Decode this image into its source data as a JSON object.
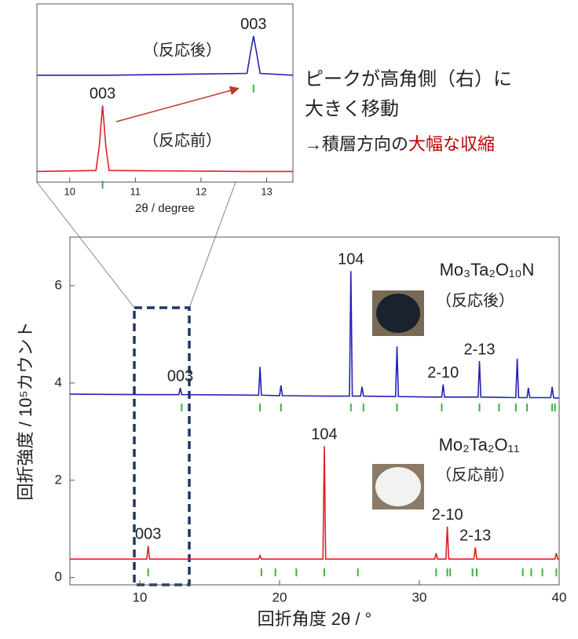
{
  "chart_data": [
    {
      "type": "line",
      "x_label": "回折角度 2θ / °",
      "y_label": "回折強度 / 10⁵カウント",
      "xlim": [
        5,
        40
      ],
      "xticks": [
        10,
        20,
        30,
        40
      ],
      "ylim": [
        -0.15,
        7
      ],
      "yticks": [
        0,
        2,
        4,
        6
      ],
      "reflection_color": "#3cb043",
      "x": [
        5,
        10.5,
        10.6,
        10.7,
        12.8,
        12.9,
        13.0,
        18.5,
        18.6,
        18.7,
        20.0,
        20.1,
        20.2,
        23.1,
        23.2,
        23.3,
        25.0,
        25.1,
        25.2,
        25.8,
        25.9,
        26.0,
        28.3,
        28.4,
        28.5,
        31.1,
        31.2,
        31.3,
        31.6,
        31.7,
        31.8,
        31.9,
        32.0,
        32.1,
        33.9,
        34.0,
        34.1,
        34.2,
        34.3,
        34.4,
        36.9,
        37.0,
        37.1,
        37.7,
        37.8,
        37.9,
        39.4,
        39.5,
        39.6,
        39.7,
        39.8,
        39.9,
        40
      ],
      "series": [
        {
          "name": "Mo₃Ta₂O₁₀N",
          "note": "（反応後）",
          "color": "#2323b4",
          "values": [
            3.77,
            3.76,
            3.76,
            3.76,
            3.76,
            3.9,
            3.76,
            3.75,
            4.33,
            3.75,
            3.74,
            3.95,
            3.74,
            3.73,
            3.73,
            3.73,
            3.73,
            6.3,
            3.73,
            3.73,
            3.92,
            3.73,
            3.72,
            4.75,
            3.72,
            3.71,
            3.71,
            3.71,
            3.71,
            3.97,
            3.71,
            3.71,
            3.71,
            3.71,
            3.71,
            3.71,
            3.71,
            3.71,
            4.45,
            3.71,
            3.7,
            4.5,
            3.7,
            3.7,
            3.9,
            3.7,
            3.7,
            3.92,
            3.7,
            3.69,
            3.69,
            3.69,
            3.69
          ],
          "peak_labels": [
            {
              "label": "003",
              "x": 12.9
            },
            {
              "label": "104",
              "x": 25.1
            },
            {
              "label": "2-10",
              "x": 31.7
            },
            {
              "label": "2-13",
              "x": 34.3
            }
          ],
          "reflections": [
            13.0,
            18.6,
            20.1,
            25.1,
            26.0,
            28.4,
            31.6,
            34.3,
            35.7,
            36.9,
            37.7,
            39.5,
            39.7
          ]
        },
        {
          "name": "Mo₂Ta₂O₁₁",
          "note": "（反応前）",
          "color": "#e02020",
          "values": [
            0.38,
            0.38,
            0.65,
            0.38,
            0.38,
            0.38,
            0.38,
            0.38,
            0.45,
            0.38,
            0.38,
            0.38,
            0.38,
            0.38,
            2.7,
            0.38,
            0.38,
            0.38,
            0.38,
            0.38,
            0.38,
            0.38,
            0.38,
            0.38,
            0.38,
            0.38,
            0.5,
            0.38,
            0.38,
            0.38,
            0.38,
            0.38,
            1.05,
            0.38,
            0.38,
            0.62,
            0.38,
            0.38,
            0.38,
            0.38,
            0.38,
            0.38,
            0.38,
            0.38,
            0.38,
            0.38,
            0.38,
            0.38,
            0.38,
            0.38,
            0.5,
            0.38,
            0.38
          ],
          "peak_labels": [
            {
              "label": "003",
              "x": 10.6
            },
            {
              "label": "104",
              "x": 23.2
            },
            {
              "label": "2-10",
              "x": 32.0
            },
            {
              "label": "2-13",
              "x": 34.0
            }
          ],
          "reflections": [
            10.6,
            18.7,
            19.7,
            21.2,
            23.2,
            25.6,
            31.2,
            32.0,
            32.2,
            33.8,
            34.1,
            37.4,
            38.0,
            38.8,
            39.8
          ]
        }
      ]
    },
    {
      "type": "line",
      "x_label": "2θ / degree",
      "xlim": [
        9.5,
        13.4
      ],
      "xticks": [
        10,
        11,
        12,
        13
      ],
      "ylim": [
        0,
        10
      ],
      "reflection_color": "#3cb043",
      "x": [
        9.5,
        10.4,
        10.45,
        10.5,
        10.55,
        10.6,
        12.7,
        12.75,
        12.8,
        12.85,
        12.9,
        13.4
      ],
      "series": [
        {
          "name": "（反応後）",
          "color": "#2323b4",
          "values": [
            6.0,
            6.0,
            6.0,
            6.0,
            6.0,
            6.0,
            6.1,
            7.2,
            8.2,
            7.2,
            6.1,
            6.0
          ],
          "peak_labels": [
            {
              "label": "003",
              "x": 12.8
            }
          ],
          "reflections": [
            12.8
          ]
        },
        {
          "name": "（反応前）",
          "color": "#e02020",
          "values": [
            0.6,
            0.65,
            2.0,
            4.3,
            2.0,
            0.65,
            0.6,
            0.6,
            0.6,
            0.6,
            0.6,
            0.6
          ],
          "peak_labels": [
            {
              "label": "003",
              "x": 10.5
            }
          ],
          "reflections": [
            10.5
          ]
        }
      ]
    }
  ],
  "notes": {
    "line1": "ピークが高角側（右）に",
    "line2": "大きく移動",
    "line3": "→積層方向の",
    "line3_emphasis": "大幅な収縮"
  }
}
